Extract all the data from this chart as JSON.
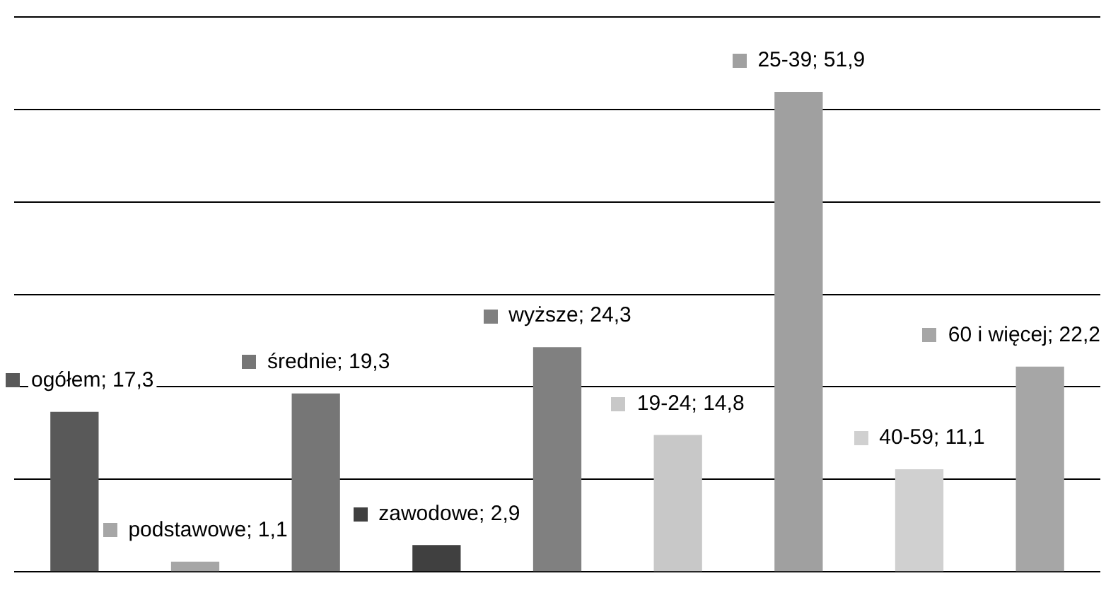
{
  "chart_data": {
    "type": "bar",
    "categories": [
      null,
      null,
      null,
      null,
      null,
      null,
      null,
      null,
      null
    ],
    "values": [
      17.3,
      1.1,
      19.3,
      2.9,
      24.3,
      14.8,
      51.9,
      11.1,
      22.2
    ],
    "value_labels": [
      "ogółem; 17,3",
      "podstawowe; 1,1",
      "średnie; 19,3",
      "zawodowe; 2,9",
      "wyższe; 24,3",
      "19-24; 14,8",
      "25-39; 51,9",
      "40-59; 11,1",
      "60 i więcej; 22,2"
    ],
    "colors": [
      "#595959",
      "#a6a6a6",
      "#767676",
      "#404040",
      "#808080",
      "#c8c8c8",
      "#a0a0a0",
      "#d0d0d0",
      "#a6a6a6"
    ],
    "ylim": [
      0,
      60
    ],
    "yticks": [
      {
        "value": 0,
        "label": null
      },
      {
        "value": 10,
        "label": null
      },
      {
        "value": 20,
        "label": null
      },
      {
        "value": 30,
        "label": null
      },
      {
        "value": 40,
        "label": null
      },
      {
        "value": 50,
        "label": null
      },
      {
        "value": 60,
        "label": null
      }
    ],
    "grid": "y",
    "legend": false
  }
}
